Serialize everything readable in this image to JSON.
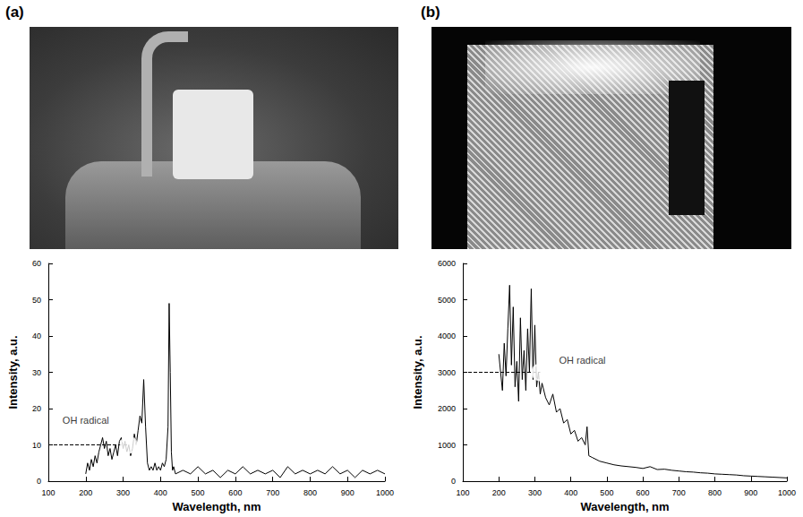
{
  "chart_data": [
    {
      "panel_label": "(a)",
      "type": "line",
      "color": "#000000",
      "x_label": "Wavelength, nm",
      "y_label": "Intensity, a.u.",
      "x": [
        200,
        205,
        210,
        215,
        220,
        225,
        230,
        235,
        240,
        245,
        250,
        255,
        260,
        265,
        270,
        275,
        280,
        285,
        290,
        295,
        300,
        305,
        310,
        315,
        320,
        325,
        330,
        335,
        340,
        345,
        350,
        355,
        360,
        365,
        370,
        375,
        380,
        385,
        390,
        395,
        400,
        405,
        410,
        415,
        420,
        423,
        426,
        429,
        432,
        435,
        440,
        460,
        480,
        500,
        520,
        540,
        560,
        580,
        600,
        620,
        640,
        660,
        680,
        700,
        720,
        740,
        760,
        780,
        800,
        820,
        840,
        860,
        880,
        900,
        920,
        940,
        960,
        980,
        1000
      ],
      "values": [
        2,
        5,
        3,
        6,
        4,
        7,
        5,
        8,
        10,
        12,
        9,
        11,
        7,
        9,
        6,
        8,
        10,
        7,
        11,
        12,
        9,
        11,
        8,
        10,
        7,
        9,
        13,
        10,
        14,
        18,
        16,
        28,
        15,
        5,
        3,
        4,
        3,
        5,
        3,
        4,
        3,
        5,
        4,
        6,
        15,
        49,
        30,
        8,
        3,
        4,
        2,
        3,
        2,
        4,
        2,
        3,
        1,
        3,
        2,
        4,
        2,
        3,
        2,
        3,
        1,
        4,
        2,
        3,
        2,
        3,
        2,
        4,
        2,
        3,
        1,
        3,
        2,
        3,
        2
      ],
      "xlim": [
        100,
        1000
      ],
      "xticks": [
        100,
        200,
        300,
        400,
        500,
        600,
        700,
        800,
        900,
        1000
      ],
      "ylim": [
        0,
        60
      ],
      "yticks": [
        0,
        10,
        20,
        30,
        40,
        50,
        60
      ],
      "grid": false,
      "annotations": [
        {
          "text": "OH radical",
          "x": 315,
          "y": 10,
          "line_style": "dashed"
        }
      ]
    },
    {
      "panel_label": "(b)",
      "type": "line",
      "color": "#000000",
      "x_label": "Wavelength, nm",
      "y_label": "Intensity, a.u.",
      "x": [
        200,
        205,
        210,
        215,
        220,
        225,
        230,
        235,
        240,
        245,
        250,
        255,
        260,
        265,
        270,
        275,
        280,
        285,
        290,
        295,
        300,
        305,
        310,
        315,
        320,
        330,
        340,
        350,
        360,
        370,
        380,
        390,
        400,
        410,
        420,
        430,
        440,
        445,
        450,
        460,
        480,
        500,
        520,
        540,
        560,
        580,
        600,
        620,
        640,
        660,
        680,
        700,
        720,
        740,
        760,
        780,
        800,
        820,
        840,
        860,
        880,
        900,
        920,
        940,
        960,
        980,
        1000
      ],
      "values": [
        3500,
        3000,
        2500,
        3800,
        2900,
        4200,
        5400,
        3200,
        4800,
        2600,
        3300,
        2200,
        4500,
        2800,
        3600,
        2500,
        4200,
        3000,
        5300,
        2800,
        4300,
        2600,
        3000,
        2400,
        2700,
        2300,
        2100,
        2400,
        1900,
        2000,
        1600,
        1700,
        1300,
        1400,
        1100,
        1200,
        1000,
        1500,
        700,
        650,
        550,
        500,
        450,
        420,
        400,
        380,
        350,
        400,
        320,
        330,
        300,
        280,
        260,
        250,
        230,
        220,
        200,
        190,
        180,
        170,
        150,
        140,
        130,
        120,
        110,
        100,
        90
      ],
      "xlim": [
        100,
        1000
      ],
      "xticks": [
        100,
        200,
        300,
        400,
        500,
        600,
        700,
        800,
        900,
        1000
      ],
      "ylim": [
        0,
        6000
      ],
      "yticks": [
        0,
        1000,
        2000,
        3000,
        4000,
        5000,
        6000
      ],
      "grid": false,
      "annotations": [
        {
          "text": "OH radical",
          "x": 315,
          "y": 3000,
          "line_style": "dashed"
        }
      ]
    }
  ]
}
